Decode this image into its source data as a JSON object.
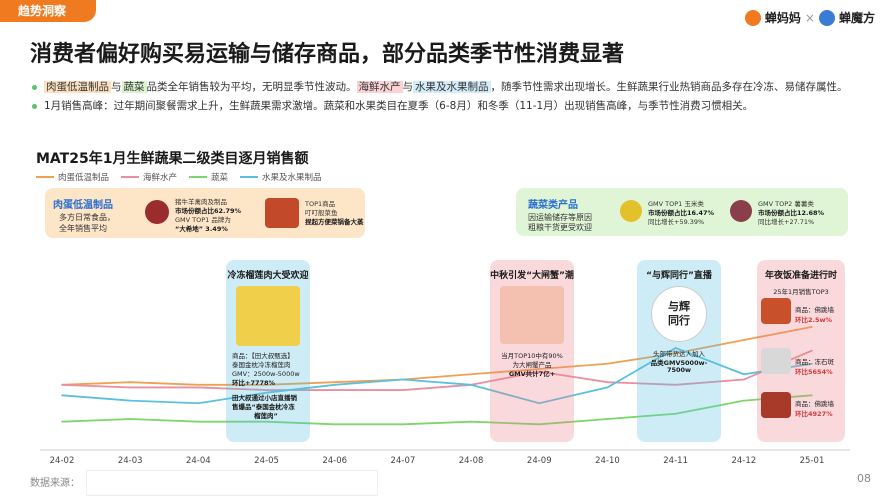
{
  "header": {
    "tag": "趋势洞察",
    "logo1": "蝉妈妈",
    "logo_sep": "×",
    "logo2": "蝉魔方"
  },
  "title": "消费者偏好购买易运输与储存商品，部分品类季节性消费显著",
  "bullets": {
    "b1_hl1": "肉蛋低温制品",
    "b1_t1": "与",
    "b1_hl2": "蔬菜",
    "b1_t2": "品类全年销售较为平均，无明显季节性波动。",
    "b1_hl3": "海鲜水产",
    "b1_t3": "与",
    "b1_hl4": "水果及水果制品",
    "b1_t4": "，随季节性需求出现增长。生鲜蔬果行业热销商品多存在冷冻、易储存属性。",
    "b2": "1月销售高峰：过年期间聚餐需求上升，生鲜蔬果需求激增。蔬菜和水果类目在夏季（6-8月）和冬季（11-1月）出现销售高峰，与季节性消费习惯相关。"
  },
  "chart_title": "MAT25年1月生鲜蔬果二级类目逐月销售额",
  "colors": {
    "meat": "#f0a050",
    "seafood": "#e88fa0",
    "veg": "#7ed66a",
    "fruit": "#5bc0e0",
    "orange": "#f07a20",
    "blue_card": "#d6eefc",
    "green_card": "#dff5d6",
    "pink_card": "#fbdada",
    "orange_card": "#fde5c8"
  },
  "chart_data": {
    "type": "line",
    "categories": [
      "24-02",
      "24-03",
      "24-04",
      "24-05",
      "24-06",
      "24-07",
      "24-08",
      "24-09",
      "24-10",
      "24-11",
      "24-12",
      "25-01"
    ],
    "series": [
      {
        "name": "肉蛋低温制品",
        "values": [
          44,
          45,
          44,
          44,
          45,
          46,
          48,
          50,
          52,
          56,
          61,
          66
        ]
      },
      {
        "name": "海鲜水产",
        "values": [
          44,
          43,
          43,
          42,
          42,
          42,
          44,
          49,
          45,
          44,
          46,
          57
        ]
      },
      {
        "name": "蔬菜",
        "values": [
          30,
          31,
          30,
          30,
          29,
          29,
          30,
          29,
          31,
          33,
          38,
          40
        ]
      },
      {
        "name": "水果及水果制品",
        "values": [
          40,
          38,
          37,
          41,
          44,
          46,
          44,
          37,
          43,
          58,
          48,
          52
        ]
      }
    ],
    "ylim": [
      20,
      80
    ]
  },
  "cards": {
    "meat": {
      "head": "肉蛋低温制品",
      "desc1": "多方日常食品，",
      "desc2": "全年销售平均",
      "p1_line1": "猪牛羊禽肉及制品",
      "p1_line2": "市场份额占比62.79%",
      "p1_line3": "GMV TOP1 品牌为",
      "p1_line4": "“大希地” 3.49%",
      "p2_line1": "TOP1商品",
      "p2_line2": "叮叮般菜鱼",
      "p2_line3": "捏起方便菜锅备大蒸"
    },
    "veg": {
      "head": "蔬菜类产品",
      "desc1": "因运输储存等原因",
      "desc2": "粗粮干货更受欢迎",
      "p1_line1": "GMV TOP1 玉米类",
      "p1_line2": "市场份额占比16.47%",
      "p1_line3": "同比增长+59.39%",
      "p2_line1": "GMV TOP2 薯薯类",
      "p2_line2": "市场份额占比12.68%",
      "p2_line3": "同比增长+27.71%"
    }
  },
  "columns": {
    "c1": {
      "head": "冷冻榴莲肉大受欢迎",
      "line1": "商品：【田大叔甄选】",
      "line2": "泰国金枕冷冻榴莲肉",
      "line3": "GMV：2500w-5000w",
      "line4": "环比+7778%",
      "line5": "田大叔通过小店直播销",
      "line6": "售爆品“泰国金枕冷冻",
      "line7": "榴莲肉”"
    },
    "c2": {
      "head": "中秋引发“大闸蟹”潮",
      "line1": "当月TOP10中有90%",
      "line2": "为大闸蟹产品",
      "line3": "GMV共计7亿+"
    },
    "c3": {
      "head": "“与辉同行”直播",
      "logo": "与辉同行",
      "line1": "头部带货达人加入",
      "line2": "品类GMV5000w-",
      "line3": "7500w"
    },
    "c4": {
      "head": "年夜饭准备进行时",
      "sub": "25年1月销售TOP3",
      "i1_a": "商品：佛跳墙",
      "i1_b": "环比2.5w%",
      "i2_a": "商品：冻石斑",
      "i2_b": "环比5654%",
      "i3_a": "商品：佛跳墙",
      "i3_b": "环比4927%"
    }
  },
  "footer": {
    "source_label": "数据来源：",
    "page": "08"
  }
}
